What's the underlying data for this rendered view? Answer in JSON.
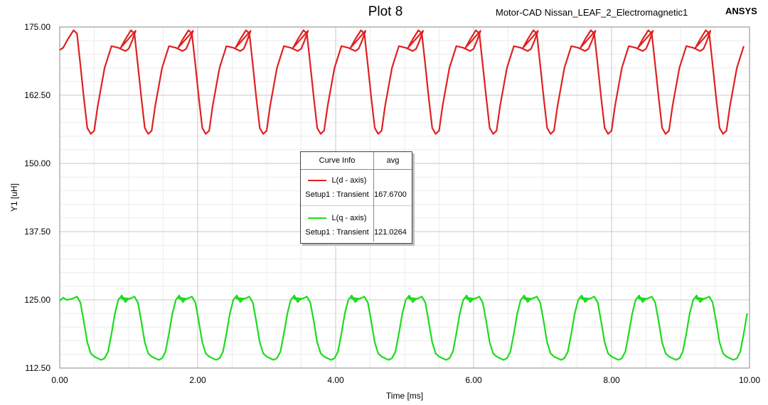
{
  "title": "Plot 8",
  "subtitle": "Motor-CAD Nissan_LEAF_2_Electromagnetic1",
  "brand": "ANSYS",
  "chart_data": {
    "type": "line",
    "title": "Plot 8",
    "xlabel": "Time [ms]",
    "ylabel": "Y1 [uH]",
    "xlim": [
      0,
      10
    ],
    "ylim": [
      112.5,
      175
    ],
    "xticks": [
      "0.00",
      "2.00",
      "4.00",
      "6.00",
      "8.00",
      "10.00"
    ],
    "yticks": [
      "112.50",
      "125.00",
      "137.50",
      "150.00",
      "162.50",
      "175.00"
    ],
    "grid": true,
    "series": [
      {
        "name": "L(d - axis)",
        "color": "#e02020",
        "x": [
          0.0,
          0.05,
          0.12,
          0.2,
          0.25,
          0.3,
          0.35,
          0.4,
          0.45,
          0.5,
          0.55,
          0.65,
          0.75,
          0.85,
          0.95,
          1.0,
          1.05,
          1.1
        ],
        "y": [
          170.8,
          171.2,
          172.8,
          174.4,
          173.8,
          168.0,
          162.0,
          156.5,
          155.4,
          156.0,
          160.5,
          167.5,
          171.5,
          171.2,
          170.6,
          171.0,
          172.5,
          174.3
        ],
        "period": 0.8333,
        "avg_label": "167.6700"
      },
      {
        "name": "L(q - axis)",
        "color": "#1cdc1c",
        "x": [
          0.0,
          0.05,
          0.1,
          0.15,
          0.2,
          0.25,
          0.3,
          0.35,
          0.4,
          0.45,
          0.5,
          0.55,
          0.6,
          0.65,
          0.7,
          0.75,
          0.8,
          0.85,
          0.9,
          0.95,
          1.0
        ],
        "y": [
          124.8,
          125.4,
          125.0,
          125.1,
          125.3,
          125.6,
          124.5,
          121.0,
          117.2,
          115.2,
          114.6,
          114.3,
          114.0,
          114.3,
          115.5,
          118.8,
          122.5,
          125.0,
          125.8,
          124.6,
          125.2
        ],
        "period": 0.8333,
        "avg_label": "121.0264"
      }
    ],
    "legend": {
      "placement": "center",
      "header_name": "Curve Info",
      "header_value": "avg",
      "setup_label": "Setup1 : Transient"
    }
  }
}
